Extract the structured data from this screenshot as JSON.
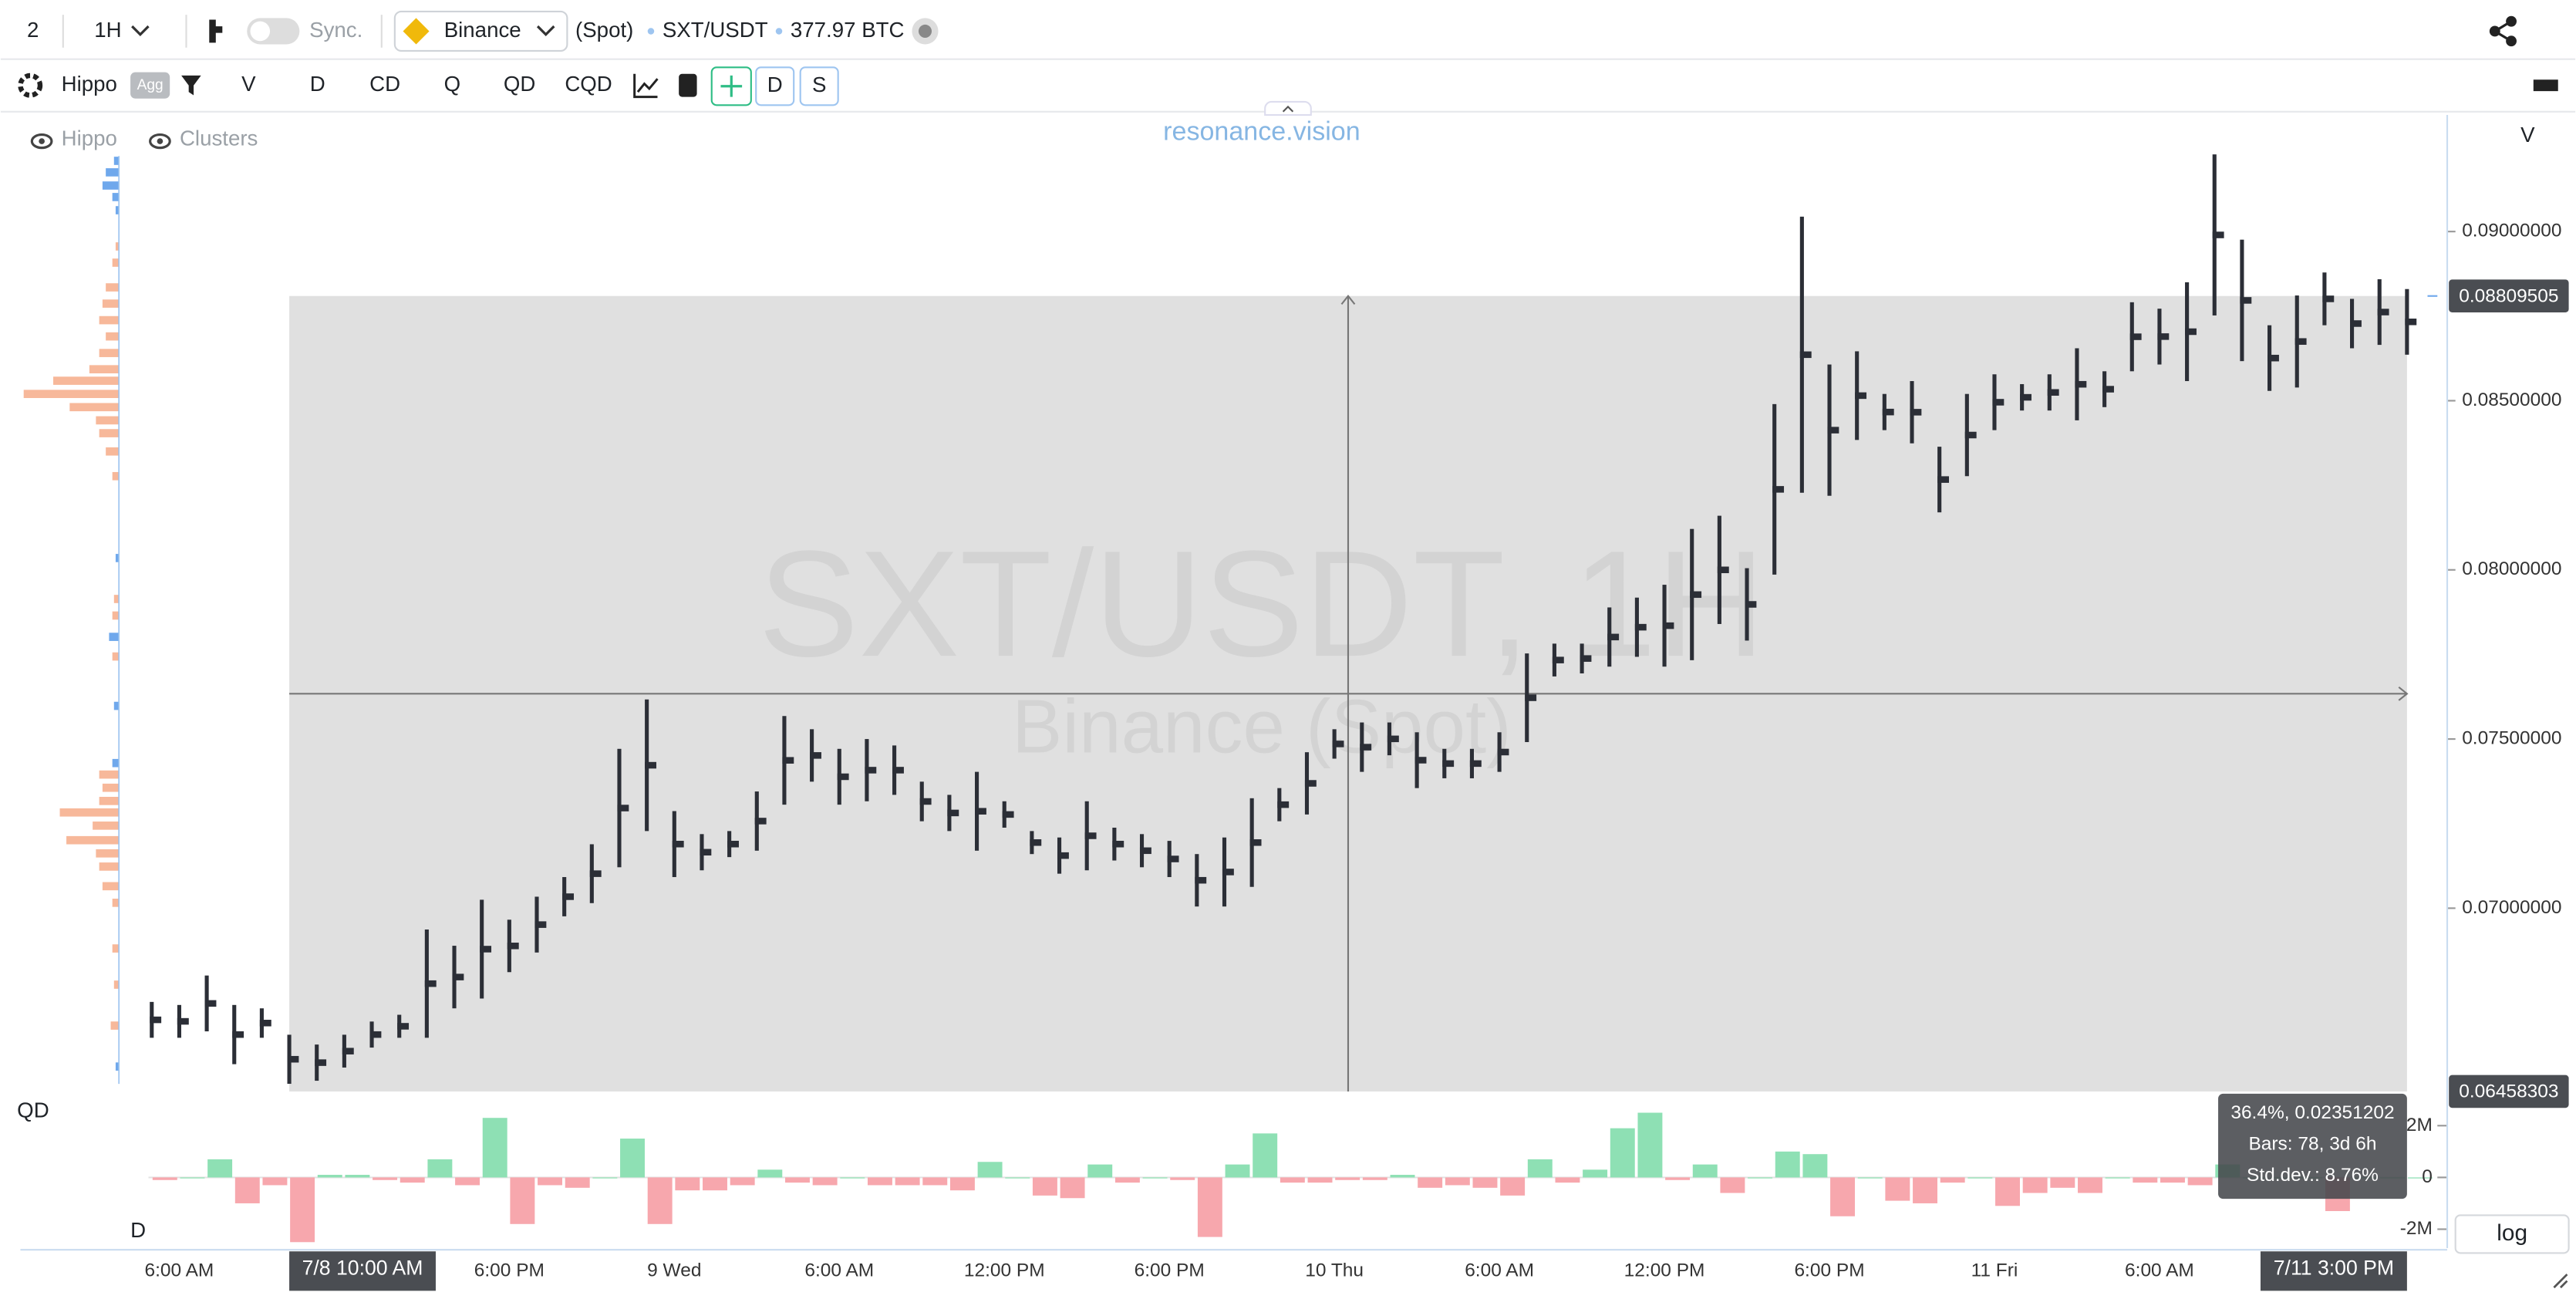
{
  "toolbar": {
    "layout_count": "2",
    "interval": "1H",
    "sync": "Sync.",
    "exchange": "Binance",
    "market": "(Spot)",
    "symbol": "SXT/USDT",
    "volume": "377.97 BTC"
  },
  "indicators": {
    "name": "Hippo",
    "agg": "Agg",
    "buttons": [
      "V",
      "D",
      "CD",
      "Q",
      "QD",
      "CQD"
    ],
    "toggles": [
      "D",
      "S"
    ]
  },
  "legend": [
    "Hippo",
    "Clusters"
  ],
  "brand": "resonance.vision",
  "scale_button": "log",
  "chart_data": [
    {
      "type": "candlestick",
      "title": "SXT/USDT, 1H",
      "subtitle": "Binance (Spot)",
      "y_label": "V",
      "color": "#2b2e36",
      "categories": [
        null,
        "6:00 AM",
        null,
        null,
        null,
        "7/8 10:00 AM",
        null,
        null,
        null,
        null,
        null,
        null,
        null,
        "6:00 PM",
        null,
        null,
        null,
        null,
        null,
        "9 Wed",
        null,
        null,
        null,
        null,
        null,
        "6:00 AM",
        null,
        null,
        null,
        null,
        null,
        "12:00 PM",
        null,
        null,
        null,
        null,
        null,
        "6:00 PM",
        null,
        null,
        null,
        null,
        null,
        "10 Thu",
        null,
        null,
        null,
        null,
        null,
        "6:00 AM",
        null,
        null,
        null,
        null,
        null,
        "12:00 PM",
        null,
        null,
        null,
        null,
        null,
        "6:00 PM",
        null,
        null,
        null,
        null,
        null,
        "11 Fri",
        null,
        null,
        null,
        null,
        null,
        "6:00 AM",
        null,
        null,
        null,
        null,
        null,
        null,
        null,
        null,
        "7/11 3:00 PM"
      ],
      "high": [
        0.06723,
        0.06714,
        0.06801,
        0.06714,
        0.06704,
        0.06626,
        0.06597,
        0.06626,
        0.06665,
        0.06685,
        0.06937,
        0.06889,
        0.07025,
        0.06966,
        0.07034,
        0.07092,
        0.07189,
        0.07471,
        0.07617,
        0.07287,
        0.07219,
        0.07228,
        0.07345,
        0.07568,
        0.07529,
        0.07471,
        0.075,
        0.07481,
        0.07374,
        0.07335,
        0.07403,
        0.07316,
        0.07228,
        0.07209,
        0.07316,
        0.07238,
        0.07219,
        0.07199,
        0.0716,
        0.07209,
        0.07325,
        0.07355,
        0.07461,
        0.07529,
        0.07549,
        0.07549,
        0.0752,
        0.07471,
        0.07471,
        0.0752,
        0.07753,
        0.07782,
        0.07782,
        0.07889,
        0.07918,
        0.07956,
        0.08121,
        0.0816,
        0.08005,
        0.0849,
        0.09044,
        0.08607,
        0.08646,
        0.0852,
        0.08558,
        0.08364,
        0.0852,
        0.08578,
        0.08549,
        0.08578,
        0.08655,
        0.08587,
        0.08791,
        0.08772,
        0.0885,
        0.09228,
        0.08976,
        0.08723,
        0.08811,
        0.08879,
        0.08801,
        0.08859,
        0.0883
      ],
      "low": [
        0.06617,
        0.06617,
        0.06636,
        0.06539,
        0.06617,
        0.06481,
        0.0649,
        0.06529,
        0.06588,
        0.06617,
        0.06617,
        0.06704,
        0.06733,
        0.06811,
        0.06869,
        0.06976,
        0.07015,
        0.07121,
        0.07228,
        0.07092,
        0.07112,
        0.07151,
        0.0717,
        0.07306,
        0.07374,
        0.07306,
        0.07316,
        0.07335,
        0.07257,
        0.07228,
        0.0717,
        0.07238,
        0.0716,
        0.07102,
        0.07112,
        0.07141,
        0.07121,
        0.07092,
        0.07005,
        0.07005,
        0.07063,
        0.07257,
        0.07277,
        0.07442,
        0.07403,
        0.07452,
        0.07355,
        0.07384,
        0.07384,
        0.07403,
        0.07491,
        0.07685,
        0.07694,
        0.07714,
        0.07743,
        0.07714,
        0.07733,
        0.0784,
        0.07791,
        0.07986,
        0.08228,
        0.08219,
        0.08384,
        0.08413,
        0.08374,
        0.0817,
        0.08277,
        0.08413,
        0.08471,
        0.08471,
        0.08442,
        0.08481,
        0.08587,
        0.08607,
        0.08558,
        0.08752,
        0.08617,
        0.08529,
        0.08539,
        0.08723,
        0.08655,
        0.08665,
        0.08636
      ],
      "ylim": [
        0.064565,
        0.093446
      ],
      "yticks": [
        {
          "value": 0.07,
          "label": "0.07000000"
        },
        {
          "value": 0.075,
          "label": "0.07500000"
        },
        {
          "value": 0.08,
          "label": "0.08000000"
        },
        {
          "value": 0.085,
          "label": "0.08500000"
        },
        {
          "value": 0.09,
          "label": "0.09000000"
        }
      ],
      "selection": {
        "range": [
          0.06458303,
          0.08809505
        ],
        "fill": "#e0e0e0",
        "stats": [
          "36.4%, 0.02351202",
          "Bars: 78, 3d 6h",
          "Std.dev.: 8.76%"
        ]
      }
    },
    {
      "type": "bar",
      "title": "QD",
      "footer": "D",
      "up_color": "#8ee0b4",
      "down_color": "#f7a7ad",
      "values": [
        -0.1,
        0,
        0.7,
        -1.0,
        -0.3,
        -2.5,
        0.1,
        0.1,
        -0.1,
        -0.2,
        0.7,
        -0.3,
        2.3,
        -1.8,
        -0.3,
        -0.4,
        0,
        1.5,
        -1.8,
        -0.5,
        -0.5,
        -0.3,
        0.3,
        -0.2,
        -0.3,
        0,
        -0.3,
        -0.3,
        -0.3,
        -0.5,
        0.6,
        0,
        -0.7,
        -0.8,
        0.5,
        -0.2,
        0,
        -0.1,
        -2.3,
        0.5,
        1.7,
        -0.2,
        -0.2,
        -0.1,
        -0.1,
        0.1,
        -0.4,
        -0.3,
        -0.4,
        -0.7,
        0.7,
        -0.2,
        0.3,
        1.9,
        2.5,
        -0.1,
        0.5,
        -0.6,
        0,
        1.0,
        0.9,
        -1.5,
        0,
        -0.9,
        -1.0,
        -0.2,
        0,
        -1.1,
        -0.6,
        -0.4,
        -0.6,
        0,
        -0.2,
        -0.2,
        -0.3,
        0.5,
        0,
        0,
        0,
        -1.3,
        0,
        0,
        0
      ],
      "ylim": [
        -2.73,
        2.98
      ],
      "yticks": [
        {
          "value": 2,
          "label": "2M"
        },
        0,
        {
          "value": -2,
          "label": "-2M"
        }
      ]
    },
    {
      "type": "profile",
      "levels": [
        0.09209,
        0.09175,
        0.09136,
        0.09102,
        0.09063,
        0.08956,
        0.08908,
        0.08835,
        0.08787,
        0.08738,
        0.0869,
        0.08641,
        0.08593,
        0.08559,
        0.0852,
        0.08481,
        0.08442,
        0.08404,
        0.0835,
        0.08277,
        0.08035,
        0.07914,
        0.07865,
        0.07802,
        0.07744,
        0.07598,
        0.07429,
        0.07395,
        0.07356,
        0.07317,
        0.07283,
        0.07244,
        0.07201,
        0.07162,
        0.07123,
        0.07065,
        0.07016,
        0.06881,
        0.06774,
        0.06653,
        0.06532
      ],
      "values": [
        3,
        8,
        10,
        4,
        2,
        2,
        4,
        8,
        10,
        12,
        8,
        12,
        18,
        40,
        58,
        30,
        14,
        12,
        8,
        4,
        2,
        3,
        4,
        6,
        4,
        3,
        4,
        12,
        10,
        12,
        36,
        16,
        32,
        14,
        12,
        10,
        4,
        4,
        3,
        5,
        2
      ],
      "colors": [
        "#6fa8ec",
        "#6fa8ec",
        "#6fa8ec",
        "#6fa8ec",
        "#6fa8ec",
        "#f7b89a",
        "#f7b89a",
        "#f7b89a",
        "#f7b89a",
        "#f7b89a",
        "#f7b89a",
        "#f7b89a",
        "#f7b89a",
        "#f7b89a",
        "#f7b89a",
        "#f7b89a",
        "#f7b89a",
        "#f7b89a",
        "#f7b89a",
        "#f7b89a",
        "#6fa8ec",
        "#f7b89a",
        "#f7b89a",
        "#6fa8ec",
        "#f7b89a",
        "#6fa8ec",
        "#6fa8ec",
        "#f7b89a",
        "#f7b89a",
        "#f7b89a",
        "#f7b89a",
        "#f7b89a",
        "#f7b89a",
        "#f7b89a",
        "#f7b89a",
        "#f7b89a",
        "#f7b89a",
        "#f7b89a",
        "#f7b89a",
        "#f7b89a",
        "#6fa8ec"
      ]
    }
  ]
}
